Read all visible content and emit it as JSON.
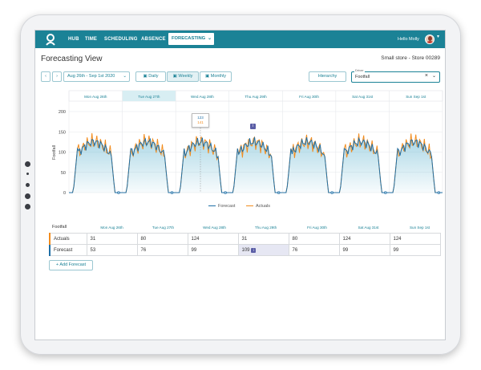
{
  "nav": {
    "items": [
      "HUB",
      "TIME",
      "SCHEDULING",
      "ABSENCE"
    ],
    "active": "FORECASTING",
    "greeting": "Hello Molly"
  },
  "page": {
    "title": "Forecasting View",
    "store": "Small store - Store 00289"
  },
  "toolbar": {
    "date_range": "Aug 26th - Sep 1st 2020",
    "views": [
      "Daily",
      "Weekly",
      "Monthly"
    ],
    "active_view": "Weekly",
    "hierarchy_label": "Hierarchy",
    "driver_label": "Driver",
    "driver_value": "Footfall"
  },
  "days": [
    "Mon Aug 26th",
    "Tue Aug 27th",
    "Wed Aug 28th",
    "Thu Aug 29th",
    "Fri Aug 30th",
    "Sat Aug 31st",
    "Sun Sep 1st"
  ],
  "chart_data": {
    "type": "line",
    "ylabel": "Footfall",
    "ylim": [
      0,
      200
    ],
    "yticks": [
      "0",
      "50",
      "100",
      "150",
      "200"
    ],
    "series": [
      {
        "name": "Forecast",
        "color": "#1f6fa6"
      },
      {
        "name": "Actuals",
        "color": "#f28c1e"
      }
    ],
    "tooltip": {
      "forecast": "123",
      "actuals": "141"
    }
  },
  "table": {
    "label": "Footfall",
    "rows": [
      {
        "name": "Actuals",
        "values": [
          "31",
          "80",
          "124",
          "31",
          "80",
          "124",
          "124"
        ]
      },
      {
        "name": "Forecast",
        "values": [
          "53",
          "76",
          "99",
          "109",
          "76",
          "99",
          "99"
        ]
      }
    ]
  },
  "add_forecast_label": "+ Add Forecast",
  "colors": {
    "primary": "#1b8296",
    "forecast": "#1f6fa6",
    "actuals": "#f28c1e"
  }
}
